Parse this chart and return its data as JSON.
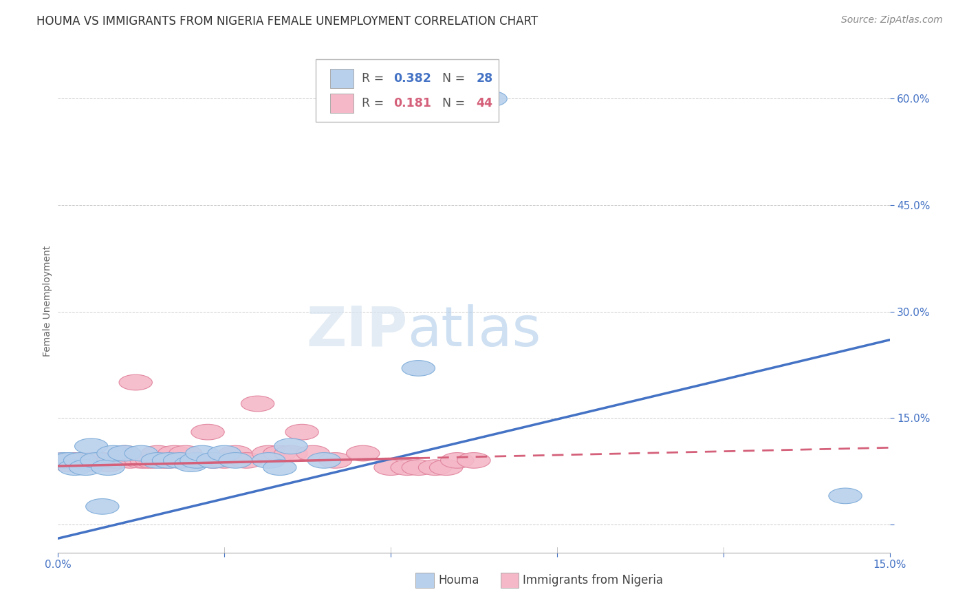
{
  "title": "HOUMA VS IMMIGRANTS FROM NIGERIA FEMALE UNEMPLOYMENT CORRELATION CHART",
  "source": "Source: ZipAtlas.com",
  "ylabel": "Female Unemployment",
  "x_min": 0.0,
  "x_max": 0.15,
  "y_min": -0.04,
  "y_max": 0.67,
  "x_ticks": [
    0.0,
    0.03,
    0.06,
    0.09,
    0.12,
    0.15
  ],
  "x_tick_labels": [
    "0.0%",
    "",
    "",
    "",
    "",
    "15.0%"
  ],
  "y_ticks": [
    0.0,
    0.15,
    0.3,
    0.45,
    0.6
  ],
  "y_tick_labels": [
    "",
    "15.0%",
    "30.0%",
    "45.0%",
    "60.0%"
  ],
  "legend_blue_r": "0.382",
  "legend_blue_n": "28",
  "legend_pink_r": "0.181",
  "legend_pink_n": "44",
  "legend_label_blue": "Houma",
  "legend_label_pink": "Immigrants from Nigeria",
  "watermark_zip": "ZIP",
  "watermark_atlas": "atlas",
  "houma_x": [
    0.001,
    0.002,
    0.003,
    0.004,
    0.005,
    0.006,
    0.007,
    0.008,
    0.009,
    0.01,
    0.012,
    0.015,
    0.018,
    0.02,
    0.022,
    0.024,
    0.025,
    0.026,
    0.028,
    0.03,
    0.032,
    0.038,
    0.04,
    0.042,
    0.048,
    0.065,
    0.078,
    0.142
  ],
  "houma_y": [
    0.09,
    0.09,
    0.08,
    0.09,
    0.08,
    0.11,
    0.09,
    0.025,
    0.08,
    0.1,
    0.1,
    0.1,
    0.09,
    0.09,
    0.09,
    0.085,
    0.09,
    0.1,
    0.09,
    0.1,
    0.09,
    0.09,
    0.08,
    0.11,
    0.09,
    0.22,
    0.6,
    0.04
  ],
  "nigeria_x": [
    0.001,
    0.002,
    0.003,
    0.004,
    0.005,
    0.006,
    0.007,
    0.008,
    0.009,
    0.01,
    0.011,
    0.012,
    0.013,
    0.014,
    0.015,
    0.016,
    0.017,
    0.018,
    0.019,
    0.02,
    0.021,
    0.022,
    0.023,
    0.025,
    0.027,
    0.028,
    0.03,
    0.032,
    0.034,
    0.036,
    0.038,
    0.04,
    0.042,
    0.044,
    0.046,
    0.05,
    0.055,
    0.06,
    0.063,
    0.065,
    0.068,
    0.07,
    0.072,
    0.075
  ],
  "nigeria_y": [
    0.09,
    0.085,
    0.09,
    0.09,
    0.085,
    0.09,
    0.09,
    0.09,
    0.085,
    0.09,
    0.09,
    0.1,
    0.09,
    0.2,
    0.09,
    0.09,
    0.09,
    0.1,
    0.09,
    0.09,
    0.1,
    0.09,
    0.1,
    0.09,
    0.13,
    0.09,
    0.09,
    0.1,
    0.09,
    0.17,
    0.1,
    0.1,
    0.1,
    0.13,
    0.1,
    0.09,
    0.1,
    0.08,
    0.08,
    0.08,
    0.08,
    0.08,
    0.09,
    0.09
  ],
  "blue_line_color": "#4472C4",
  "pink_line_color": "#D4607A",
  "blue_dot_fill": "#B8D0EC",
  "blue_dot_edge": "#7AAAD8",
  "pink_dot_fill": "#F4B8C8",
  "pink_dot_edge": "#E0809A",
  "grid_color": "#CCCCCC",
  "background_color": "#FFFFFF",
  "title_fontsize": 12,
  "axis_label_fontsize": 10,
  "tick_fontsize": 11,
  "source_fontsize": 10
}
